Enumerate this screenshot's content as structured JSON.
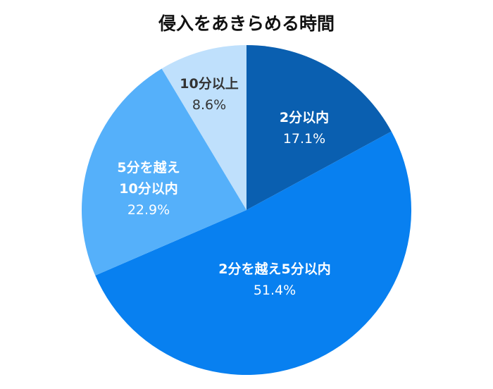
{
  "chart_data": {
    "type": "pie",
    "title": "侵入をあきらめる時間",
    "slices": [
      {
        "label": [
          "2分以内"
        ],
        "value": 17.1,
        "value_label": "17.1%",
        "color": "#0a5fb0",
        "text_color": "#ffffff"
      },
      {
        "label": [
          "2分を越え5分以内"
        ],
        "value": 51.4,
        "value_label": "51.4%",
        "color": "#0880f0",
        "text_color": "#ffffff"
      },
      {
        "label": [
          "5分を越え",
          "10分以内"
        ],
        "value": 22.9,
        "value_label": "22.9%",
        "color": "#55b0fa",
        "text_color": "#ffffff"
      },
      {
        "label": [
          "10分以上"
        ],
        "value": 8.6,
        "value_label": "8.6%",
        "color": "#bfe0fc",
        "text_color": "#333333"
      }
    ],
    "start": "12 o'clock",
    "direction": "clockwise",
    "legend": "none"
  }
}
